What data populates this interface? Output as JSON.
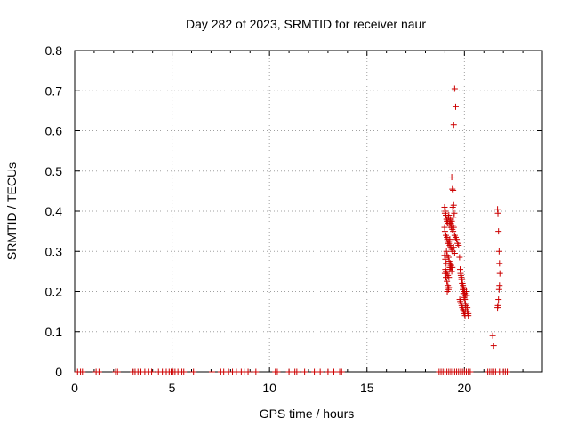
{
  "chart_data": {
    "type": "scatter",
    "title": "Day 282 of 2023, SRMTID for receiver naur",
    "xlabel": "GPS time / hours",
    "ylabel": "SRMTID / TECUs",
    "xlim": [
      0,
      24
    ],
    "ylim": [
      0,
      0.8
    ],
    "xticks": [
      0,
      5,
      10,
      15,
      20
    ],
    "xtick_labels": [
      "0",
      "5",
      "10",
      "15",
      "20"
    ],
    "yticks": [
      0,
      0.1,
      0.2,
      0.3,
      0.4,
      0.5,
      0.6,
      0.7,
      0.8
    ],
    "ytick_labels": [
      "0",
      "0.1",
      "0.2",
      "0.3",
      "0.4",
      "0.5",
      "0.6",
      "0.7",
      "0.8"
    ],
    "grid": true,
    "marker": "+",
    "color": "#cc0000",
    "series": [
      {
        "name": "SRMTID",
        "x": [
          0.15,
          0.3,
          0.4,
          1.1,
          1.25,
          2.1,
          2.2,
          3.0,
          3.1,
          3.25,
          3.4,
          3.6,
          3.8,
          3.95,
          4.3,
          4.5,
          4.7,
          4.85,
          4.95,
          5.05,
          5.15,
          5.3,
          5.5,
          5.6,
          6.1,
          7.05,
          7.5,
          7.65,
          7.9,
          8.1,
          8.3,
          8.55,
          8.7,
          8.9,
          9.3,
          10.3,
          10.4,
          11.0,
          11.3,
          11.4,
          11.8,
          12.3,
          12.6,
          13.0,
          13.3,
          13.6,
          13.7,
          18.7,
          18.8,
          18.9,
          19.0,
          19.1,
          19.2,
          19.3,
          19.4,
          19.5,
          19.6,
          19.7,
          19.8,
          19.9,
          20.0,
          20.1,
          20.2,
          20.3,
          21.2,
          21.3,
          21.4,
          21.5,
          21.6,
          21.8,
          22.0,
          22.1,
          22.2,
          19.5,
          19.55,
          19.45,
          19.35,
          19.38,
          19.42,
          19.4,
          19.45,
          19.48,
          19.43,
          18.98,
          19.0,
          19.02,
          19.05,
          19.08,
          19.1,
          19.12,
          19.15,
          19.18,
          19.2,
          19.22,
          19.25,
          19.28,
          19.3,
          19.32,
          19.35,
          19.38,
          19.4,
          19.42,
          19.45,
          19.5,
          19.55,
          19.6,
          19.65,
          19.7,
          18.98,
          19.0,
          19.05,
          19.1,
          19.12,
          19.15,
          19.2,
          19.25,
          19.3,
          19.35,
          19.4,
          19.45,
          19.5,
          19.08,
          19.12,
          19.18,
          19.22,
          19.28,
          19.32,
          19.38,
          19.02,
          19.05,
          19.1,
          19.15,
          19.2,
          19.25,
          19.3,
          19.0,
          19.05,
          19.1,
          19.15,
          19.2,
          19.25,
          19.3,
          19.35,
          18.98,
          19.02,
          19.06,
          19.12,
          19.18,
          19.2,
          19.25,
          19.75,
          19.78,
          19.8,
          19.82,
          19.85,
          19.88,
          19.9,
          19.92,
          19.95,
          19.98,
          20.0,
          20.02,
          20.05,
          19.76,
          19.79,
          19.83,
          19.86,
          19.89,
          19.93,
          19.96,
          20.0,
          20.03,
          20.06,
          20.1,
          20.15,
          20.2,
          19.85,
          19.88,
          19.92,
          19.95,
          19.98,
          20.02,
          20.05,
          20.08,
          20.12,
          20.15,
          20.2,
          21.7,
          21.72,
          21.75,
          21.78,
          21.8,
          21.82,
          21.8,
          21.78,
          21.75,
          21.72,
          21.7,
          21.45,
          21.5
        ],
        "y": [
          0,
          0,
          0,
          0,
          0,
          0,
          0,
          0,
          0,
          0,
          0,
          0,
          0,
          0,
          0,
          0,
          0,
          0,
          0,
          0,
          0,
          0,
          0,
          0,
          0,
          0,
          0,
          0,
          0,
          0,
          0,
          0,
          0,
          0,
          0,
          0,
          0,
          0,
          0,
          0,
          0,
          0,
          0,
          0,
          0,
          0,
          0,
          0,
          0,
          0,
          0,
          0,
          0,
          0,
          0,
          0,
          0,
          0,
          0,
          0,
          0,
          0,
          0,
          0,
          0,
          0,
          0,
          0,
          0,
          0,
          0,
          0,
          0,
          0.705,
          0.66,
          0.615,
          0.485,
          0.455,
          0.452,
          0.41,
          0.415,
          0.395,
          0.385,
          0.41,
          0.395,
          0.4,
          0.39,
          0.38,
          0.375,
          0.38,
          0.37,
          0.385,
          0.39,
          0.375,
          0.365,
          0.38,
          0.37,
          0.36,
          0.375,
          0.355,
          0.365,
          0.35,
          0.36,
          0.34,
          0.335,
          0.33,
          0.32,
          0.315,
          0.36,
          0.35,
          0.34,
          0.335,
          0.33,
          0.32,
          0.325,
          0.315,
          0.31,
          0.305,
          0.3,
          0.31,
          0.295,
          0.3,
          0.29,
          0.285,
          0.275,
          0.27,
          0.265,
          0.26,
          0.255,
          0.25,
          0.245,
          0.24,
          0.235,
          0.26,
          0.265,
          0.245,
          0.235,
          0.225,
          0.215,
          0.21,
          0.255,
          0.26,
          0.25,
          0.29,
          0.28,
          0.27,
          0.2,
          0.205,
          0.32,
          0.33,
          0.285,
          0.255,
          0.245,
          0.24,
          0.235,
          0.23,
          0.22,
          0.215,
          0.21,
          0.205,
          0.2,
          0.195,
          0.19,
          0.18,
          0.175,
          0.17,
          0.165,
          0.16,
          0.155,
          0.15,
          0.145,
          0.14,
          0.155,
          0.2,
          0.16,
          0.145,
          0.23,
          0.22,
          0.205,
          0.195,
          0.185,
          0.18,
          0.17,
          0.165,
          0.19,
          0.15,
          0.14,
          0.405,
          0.395,
          0.35,
          0.3,
          0.27,
          0.245,
          0.215,
          0.205,
          0.18,
          0.165,
          0.16,
          0.09,
          0.065
        ]
      }
    ]
  }
}
